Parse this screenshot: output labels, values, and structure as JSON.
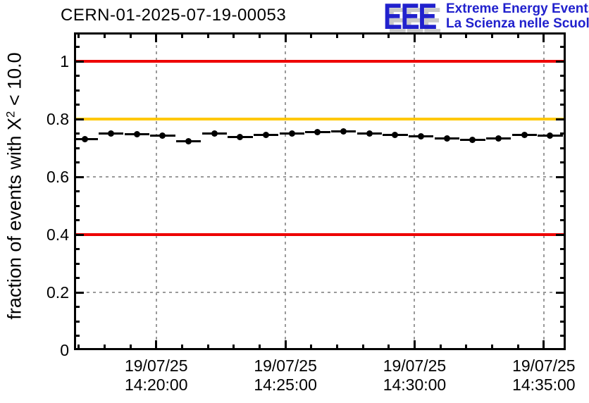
{
  "header": {
    "logo": {
      "letters": "EEE",
      "line1": "Extreme Energy Events",
      "line2": "La Scienza nelle Scuole",
      "text_color": "#2121cd",
      "shadow_color": "#c8c8c8"
    }
  },
  "chart_data": {
    "type": "line",
    "title": "CERN-01-2025-07-19-00053",
    "ylabel": "fraction of events with X^2 < 10.0",
    "ylabel_parts": {
      "prefix": "fraction of events with X",
      "sup": "2",
      "suffix": " < 10.0"
    },
    "grid": "dashed",
    "grid_color": "#9a9a9a",
    "axis_color": "#000000",
    "x_axis": {
      "type": "time",
      "start": "14:16:49",
      "end": "14:35:51",
      "minor_tick_interval_sec": 60,
      "major_ticks": [
        {
          "time": "14:20:00",
          "line1": "19/07/25",
          "line2": "14:20:00"
        },
        {
          "time": "14:25:00",
          "line1": "19/07/25",
          "line2": "14:25:00"
        },
        {
          "time": "14:30:00",
          "line1": "19/07/25",
          "line2": "14:30:00"
        },
        {
          "time": "14:35:00",
          "line1": "19/07/25",
          "line2": "14:35:00"
        }
      ]
    },
    "y_axis": {
      "min": 0,
      "max": 1.1,
      "minor_tick_step": 0.05,
      "major_ticks": [
        {
          "value": 0,
          "label": "0"
        },
        {
          "value": 0.2,
          "label": "0.2"
        },
        {
          "value": 0.4,
          "label": "0.4"
        },
        {
          "value": 0.6,
          "label": "0.6"
        },
        {
          "value": 0.8,
          "label": "0.8"
        },
        {
          "value": 1,
          "label": "1"
        }
      ]
    },
    "reference_lines": [
      {
        "value": 1.0,
        "color": "#ee0000"
      },
      {
        "value": 0.8,
        "color": "#ffc800"
      },
      {
        "value": 0.4,
        "color": "#ee0000"
      }
    ],
    "series": [
      {
        "marker": "filled-circle",
        "color": "#000000",
        "x_error_sec": 29,
        "points": [
          {
            "t": "14:17:15",
            "v": 0.73
          },
          {
            "t": "14:18:15",
            "v": 0.75
          },
          {
            "t": "14:19:15",
            "v": 0.748
          },
          {
            "t": "14:20:15",
            "v": 0.742
          },
          {
            "t": "14:21:15",
            "v": 0.722
          },
          {
            "t": "14:22:15",
            "v": 0.75
          },
          {
            "t": "14:23:15",
            "v": 0.738
          },
          {
            "t": "14:24:15",
            "v": 0.744
          },
          {
            "t": "14:25:15",
            "v": 0.749
          },
          {
            "t": "14:26:15",
            "v": 0.755
          },
          {
            "t": "14:27:15",
            "v": 0.758
          },
          {
            "t": "14:28:15",
            "v": 0.749
          },
          {
            "t": "14:29:15",
            "v": 0.745
          },
          {
            "t": "14:30:15",
            "v": 0.741
          },
          {
            "t": "14:31:15",
            "v": 0.734
          },
          {
            "t": "14:32:15",
            "v": 0.729
          },
          {
            "t": "14:33:15",
            "v": 0.734
          },
          {
            "t": "14:34:15",
            "v": 0.746
          },
          {
            "t": "14:35:15",
            "v": 0.742
          }
        ]
      }
    ]
  }
}
